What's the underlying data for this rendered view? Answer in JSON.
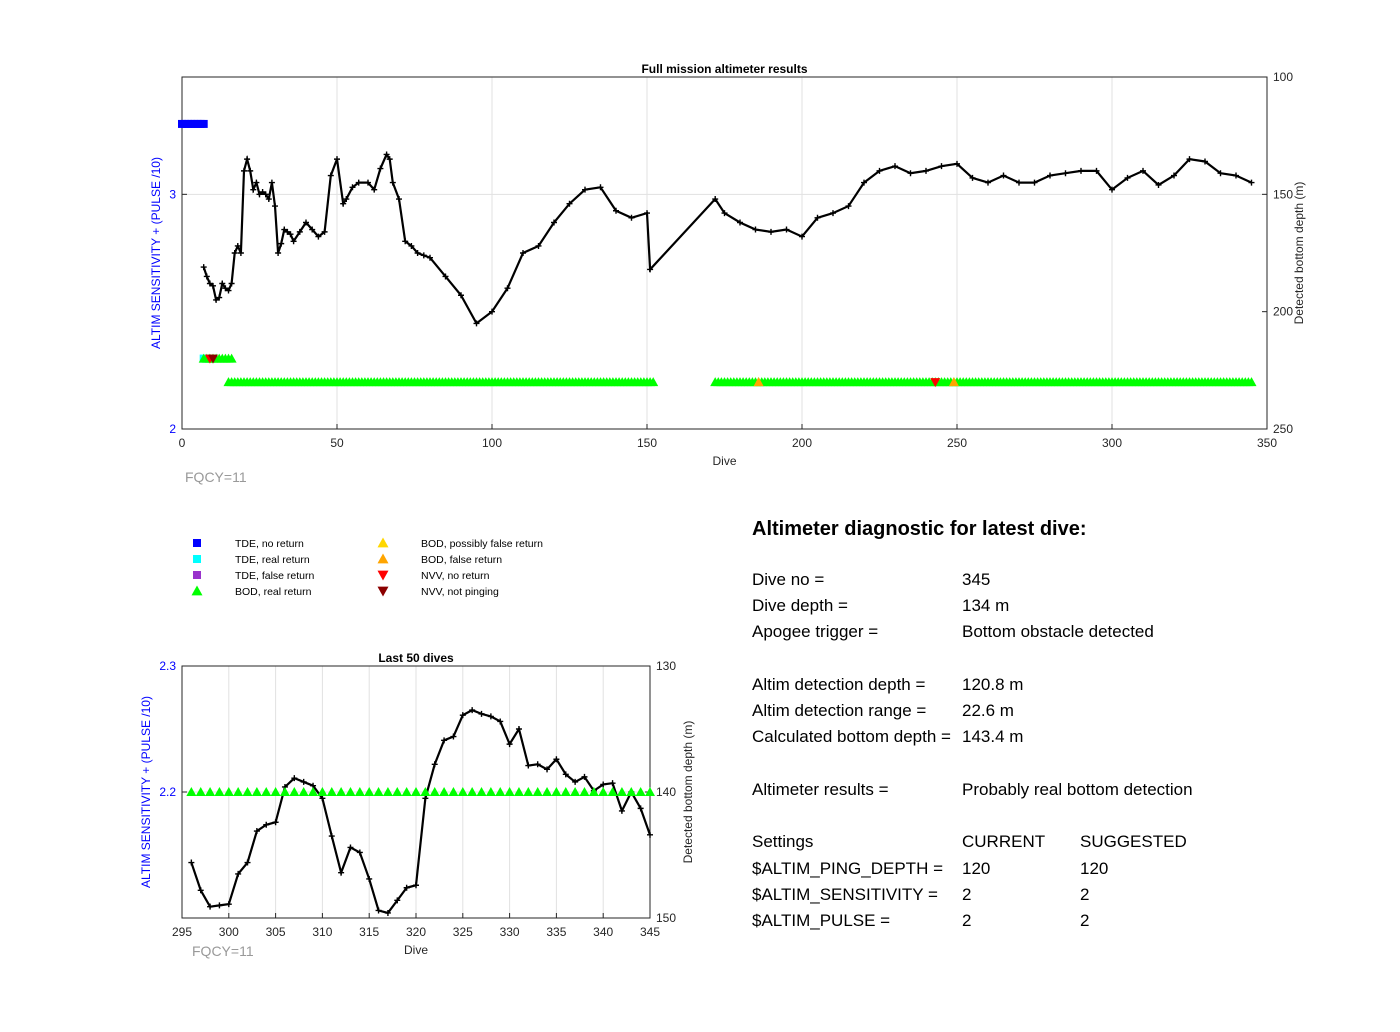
{
  "chart_data": [
    {
      "type": "line",
      "title": "Full mission altimeter results",
      "xlabel": "Dive",
      "ylabel": "ALTIM SENSITIVITY + (PULSE /10)",
      "y2label": "Detected bottom depth (m)",
      "xlim": [
        0,
        350
      ],
      "ylim": [
        2,
        3.5
      ],
      "y2lim": [
        100,
        250
      ],
      "y2_reversed": true,
      "xticks": [
        "0",
        "50",
        "100",
        "150",
        "200",
        "250",
        "300",
        "350"
      ],
      "yticks": [
        "2",
        "3"
      ],
      "y2ticks": [
        "100",
        "150",
        "200",
        "250"
      ],
      "grid": true,
      "annotation": "FQCY=11",
      "series": [
        {
          "name": "Detected bottom depth",
          "color": "#000000",
          "axis": "right",
          "x": [
            7,
            8,
            9,
            10,
            11,
            12,
            13,
            14,
            15,
            16,
            17,
            18,
            19,
            20,
            21,
            22,
            23,
            24,
            25,
            26,
            27,
            28,
            29,
            30,
            31,
            32,
            33,
            34,
            35,
            36,
            38,
            40,
            42,
            44,
            46,
            48,
            50,
            52,
            53,
            55,
            57,
            60,
            62,
            64,
            66,
            67,
            68,
            70,
            72,
            74,
            76,
            78,
            80,
            85,
            90,
            95,
            100,
            105,
            110,
            115,
            120,
            125,
            130,
            135,
            140,
            145,
            150,
            151,
            172,
            175,
            180,
            185,
            190,
            195,
            200,
            205,
            210,
            215,
            220,
            225,
            230,
            235,
            240,
            245,
            250,
            255,
            260,
            265,
            270,
            275,
            280,
            285,
            290,
            295,
            300,
            305,
            310,
            315,
            320,
            325,
            330,
            335,
            340,
            345
          ],
          "values": [
            181,
            185,
            188,
            189,
            195,
            194,
            188,
            190,
            191,
            188,
            175,
            172,
            175,
            140,
            135,
            140,
            148,
            145,
            150,
            149,
            150,
            152,
            145,
            155,
            175,
            171,
            165,
            166,
            167,
            170,
            166,
            162,
            165,
            168,
            166,
            142,
            135,
            154,
            152,
            147,
            145,
            145,
            148,
            139,
            133,
            135,
            145,
            152,
            170,
            172,
            175,
            176,
            177,
            185,
            193,
            205,
            200,
            190,
            175,
            172,
            162,
            154,
            148,
            147,
            157,
            160,
            158,
            182,
            152,
            158,
            162,
            165,
            166,
            165,
            168,
            160,
            158,
            155,
            145,
            140,
            138,
            141,
            140,
            138,
            137,
            143,
            145,
            142,
            145,
            145,
            142,
            141,
            140,
            140,
            148,
            143,
            140,
            146,
            142,
            135,
            136,
            141,
            142,
            145
          ]
        },
        {
          "name": "TDE, no return",
          "color": "#0000FF",
          "axis": "left",
          "marker": "square",
          "x": [
            0,
            1,
            2,
            3,
            4,
            5,
            6,
            7
          ],
          "values": [
            3.3,
            3.3,
            3.3,
            3.3,
            3.3,
            3.3,
            3.3,
            3.3
          ]
        },
        {
          "name": "TDE, real return",
          "color": "#00FFFF",
          "axis": "left",
          "marker": "square",
          "x": [
            7,
            8
          ],
          "values": [
            2.3,
            2.3
          ]
        },
        {
          "name": "BOD, real return",
          "color": "#00FF00",
          "axis": "left",
          "marker": "triangle-up",
          "segments": [
            {
              "x_start": 7,
              "x_end": 16,
              "value": 2.3
            },
            {
              "x_start": 15,
              "x_end": 148,
              "value": 2.2
            },
            {
              "x_start": 149,
              "x_end": 152,
              "value": 2.2
            },
            {
              "x_start": 172,
              "x_end": 345,
              "value": 2.2
            }
          ]
        },
        {
          "name": "BOD, false return",
          "color": "#FFA500",
          "axis": "left",
          "marker": "triangle-up",
          "x": [
            186,
            249
          ],
          "values": [
            2.2,
            2.2
          ]
        },
        {
          "name": "NVV, no return",
          "color": "#FF0000",
          "axis": "left",
          "marker": "triangle-down",
          "x": [
            9,
            243
          ],
          "values": [
            2.3,
            2.2
          ]
        },
        {
          "name": "NVV, not pinging",
          "color": "#8B0000",
          "axis": "left",
          "marker": "triangle-down",
          "x": [
            10
          ],
          "values": [
            2.3
          ]
        }
      ]
    },
    {
      "type": "line",
      "title": "Last 50 dives",
      "xlabel": "Dive",
      "ylabel": "ALTIM SENSITIVITY + (PULSE /10)",
      "y2label": "Detected bottom depth (m)",
      "xlim": [
        295,
        345
      ],
      "ylim": [
        2.1,
        2.3
      ],
      "y2lim": [
        130,
        150
      ],
      "y2_reversed": true,
      "xticks": [
        "295",
        "300",
        "305",
        "310",
        "315",
        "320",
        "325",
        "330",
        "335",
        "340",
        "345"
      ],
      "yticks": [
        "2.2",
        "2.3"
      ],
      "y2ticks": [
        "130",
        "140",
        "150"
      ],
      "grid": true,
      "annotation": "FQCY=11",
      "series": [
        {
          "name": "Detected bottom depth",
          "color": "#000000",
          "axis": "right",
          "x": [
            296,
            297,
            298,
            299,
            300,
            301,
            302,
            303,
            304,
            305,
            306,
            307,
            308,
            309,
            310,
            311,
            312,
            313,
            314,
            315,
            316,
            317,
            318,
            319,
            320,
            321,
            322,
            323,
            324,
            325,
            326,
            327,
            328,
            329,
            330,
            331,
            332,
            333,
            334,
            335,
            336,
            337,
            338,
            339,
            340,
            341,
            342,
            343,
            344,
            345
          ],
          "values": [
            145.6,
            147.8,
            149.1,
            149.0,
            148.9,
            146.5,
            145.6,
            143.1,
            142.6,
            142.4,
            139.6,
            138.9,
            139.2,
            139.5,
            140.5,
            143.5,
            146.4,
            144.4,
            144.8,
            146.9,
            149.4,
            149.6,
            148.6,
            147.6,
            147.4,
            140.5,
            137.8,
            135.9,
            135.6,
            133.9,
            133.5,
            133.8,
            134.0,
            134.4,
            136.2,
            135.0,
            137.9,
            137.8,
            138.2,
            137.4,
            138.6,
            139.2,
            138.8,
            139.9,
            139.4,
            139.3,
            141.5,
            140.0,
            141.3,
            143.4
          ]
        },
        {
          "name": "BOD, real return",
          "color": "#00FF00",
          "axis": "left",
          "marker": "triangle-up",
          "x": [
            296,
            297,
            298,
            299,
            300,
            301,
            302,
            303,
            304,
            305,
            306,
            307,
            308,
            309,
            310,
            311,
            312,
            313,
            314,
            315,
            316,
            317,
            318,
            319,
            320,
            321,
            322,
            323,
            324,
            325,
            326,
            327,
            328,
            329,
            330,
            331,
            332,
            333,
            334,
            335,
            336,
            337,
            338,
            339,
            340,
            341,
            342,
            343,
            344,
            345
          ],
          "values": [
            2.2,
            2.2,
            2.2,
            2.2,
            2.2,
            2.2,
            2.2,
            2.2,
            2.2,
            2.2,
            2.2,
            2.2,
            2.2,
            2.2,
            2.2,
            2.2,
            2.2,
            2.2,
            2.2,
            2.2,
            2.2,
            2.2,
            2.2,
            2.2,
            2.2,
            2.2,
            2.2,
            2.2,
            2.2,
            2.2,
            2.2,
            2.2,
            2.2,
            2.2,
            2.2,
            2.2,
            2.2,
            2.2,
            2.2,
            2.2,
            2.2,
            2.2,
            2.2,
            2.2,
            2.2,
            2.2,
            2.2,
            2.2,
            2.2,
            2.2
          ]
        }
      ]
    }
  ],
  "legend": {
    "items": [
      {
        "label": "TDE, no return",
        "color": "#0000FF",
        "marker": "square"
      },
      {
        "label": "TDE, real return",
        "color": "#00FFFF",
        "marker": "square"
      },
      {
        "label": "TDE, false return",
        "color": "#9932CC",
        "marker": "square"
      },
      {
        "label": "BOD, real return",
        "color": "#00FF00",
        "marker": "triangle-up"
      },
      {
        "label": "BOD, possibly false return",
        "color": "#FFD700",
        "marker": "triangle-up"
      },
      {
        "label": "BOD, false return",
        "color": "#FFA500",
        "marker": "triangle-up"
      },
      {
        "label": "NVV, no return",
        "color": "#FF0000",
        "marker": "triangle-down"
      },
      {
        "label": "NVV, not pinging",
        "color": "#8B0000",
        "marker": "triangle-down"
      }
    ]
  },
  "diagnostic": {
    "title": "Altimeter diagnostic for latest dive:",
    "dive_no_label": "Dive no =",
    "dive_no": "345",
    "dive_depth_label": "Dive depth =",
    "dive_depth": "134 m",
    "apogee_label": "Apogee trigger =",
    "apogee": "Bottom obstacle detected",
    "detect_depth_label": "Altim detection depth =",
    "detect_depth": "120.8 m",
    "detect_range_label": "Altim detection range =",
    "detect_range": "22.6 m",
    "calc_bottom_label": "Calculated bottom depth =",
    "calc_bottom": "143.4 m",
    "results_label": "Altimeter results =",
    "results": "Probably real bottom detection",
    "settings_label": "Settings",
    "current_label": "CURRENT",
    "suggested_label": "SUGGESTED",
    "ping_depth_label": "$ALTIM_PING_DEPTH =",
    "ping_depth_current": "120",
    "ping_depth_suggested": "120",
    "sensitivity_label": "$ALTIM_SENSITIVITY =",
    "sensitivity_current": "2",
    "sensitivity_suggested": "2",
    "pulse_label": "$ALTIM_PULSE =",
    "pulse_current": "2",
    "pulse_suggested": "2"
  }
}
